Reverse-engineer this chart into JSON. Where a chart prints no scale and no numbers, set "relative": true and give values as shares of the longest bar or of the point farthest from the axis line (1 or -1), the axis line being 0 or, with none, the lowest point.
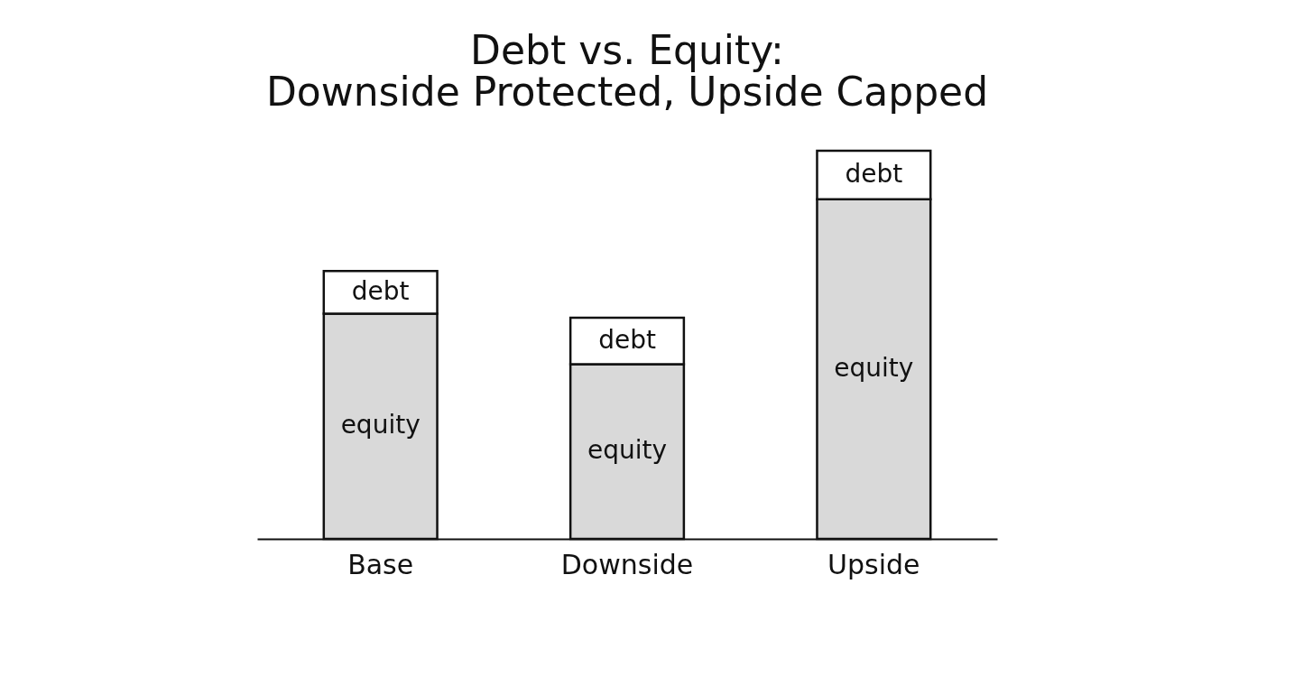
{
  "chart_data": {
    "type": "bar",
    "title": "Debt vs. Equity:\nDownside Protected, Upside Capped",
    "categories": [
      "Base",
      "Downside",
      "Upside"
    ],
    "stacked": true,
    "relative": true,
    "legend": false,
    "grid": false,
    "series": [
      {
        "name": "equity",
        "color": "#d9d9d9",
        "values": [
          0.58,
          0.45,
          0.875
        ]
      },
      {
        "name": "debt",
        "color": "#ffffff",
        "values": [
          0.11,
          0.12,
          0.125
        ]
      }
    ]
  }
}
